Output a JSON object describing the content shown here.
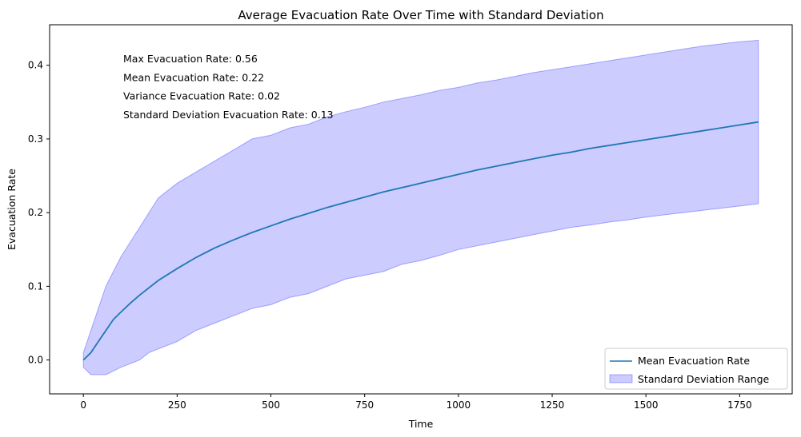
{
  "chart_data": {
    "type": "line",
    "title": "Average Evacuation Rate Over Time with Standard Deviation",
    "xlabel": "Time",
    "ylabel": "Evacuation Rate",
    "xlim": [
      -90,
      1890
    ],
    "ylim": [
      -0.046,
      0.455
    ],
    "xticks": [
      0,
      250,
      500,
      750,
      1000,
      1250,
      1500,
      1750
    ],
    "xtick_labels": [
      "0",
      "250",
      "500",
      "750",
      "1000",
      "1250",
      "1500",
      "1750"
    ],
    "yticks": [
      0.0,
      0.1,
      0.2,
      0.3,
      0.4
    ],
    "ytick_labels": [
      "0.0",
      "0.1",
      "0.2",
      "0.3",
      "0.4"
    ],
    "grid": false,
    "legend_position": "bottom-right",
    "legend": [
      "Mean Evacuation Rate",
      "Standard Deviation Range"
    ],
    "annotations": [
      "Max Evacuation Rate: 0.56",
      "Mean Evacuation Rate: 0.22",
      "Variance Evacuation Rate: 0.02",
      "Standard Deviation Evacuation Rate: 0.13"
    ],
    "series": [
      {
        "name": "Mean Evacuation Rate",
        "type": "line",
        "color": "#1f77b4",
        "x": [
          0,
          20,
          40,
          60,
          80,
          100,
          125,
          150,
          175,
          200,
          250,
          300,
          350,
          400,
          450,
          500,
          550,
          600,
          650,
          700,
          750,
          800,
          850,
          900,
          950,
          1000,
          1050,
          1100,
          1150,
          1200,
          1250,
          1300,
          1350,
          1400,
          1450,
          1500,
          1550,
          1600,
          1650,
          1700,
          1750,
          1800
        ],
        "y": [
          0.0,
          0.01,
          0.025,
          0.04,
          0.055,
          0.065,
          0.077,
          0.088,
          0.098,
          0.108,
          0.124,
          0.139,
          0.152,
          0.163,
          0.173,
          0.182,
          0.191,
          0.199,
          0.207,
          0.214,
          0.221,
          0.228,
          0.234,
          0.24,
          0.246,
          0.252,
          0.258,
          0.263,
          0.268,
          0.273,
          0.278,
          0.282,
          0.287,
          0.291,
          0.295,
          0.299,
          0.303,
          0.307,
          0.311,
          0.315,
          0.319,
          0.323
        ]
      },
      {
        "name": "Standard Deviation Range",
        "type": "area",
        "color": "#0000ff",
        "opacity": 0.2,
        "x": [
          0,
          20,
          40,
          60,
          80,
          100,
          125,
          150,
          175,
          200,
          250,
          300,
          350,
          400,
          450,
          500,
          550,
          600,
          650,
          700,
          750,
          800,
          850,
          900,
          950,
          1000,
          1050,
          1100,
          1150,
          1200,
          1250,
          1300,
          1350,
          1400,
          1450,
          1500,
          1550,
          1600,
          1650,
          1700,
          1750,
          1800
        ],
        "upper": [
          0.01,
          0.04,
          0.07,
          0.1,
          0.12,
          0.14,
          0.16,
          0.18,
          0.2,
          0.22,
          0.24,
          0.255,
          0.27,
          0.285,
          0.3,
          0.305,
          0.315,
          0.32,
          0.33,
          0.337,
          0.343,
          0.35,
          0.355,
          0.36,
          0.366,
          0.37,
          0.376,
          0.38,
          0.385,
          0.39,
          0.394,
          0.398,
          0.402,
          0.406,
          0.41,
          0.414,
          0.418,
          0.422,
          0.426,
          0.429,
          0.432,
          0.434
        ],
        "lower": [
          -0.01,
          -0.02,
          -0.02,
          -0.02,
          -0.015,
          -0.01,
          -0.005,
          0.0,
          0.01,
          0.015,
          0.025,
          0.04,
          0.05,
          0.06,
          0.07,
          0.075,
          0.085,
          0.09,
          0.1,
          0.11,
          0.115,
          0.12,
          0.13,
          0.135,
          0.142,
          0.15,
          0.155,
          0.16,
          0.165,
          0.17,
          0.175,
          0.18,
          0.183,
          0.187,
          0.19,
          0.194,
          0.197,
          0.2,
          0.203,
          0.206,
          0.209,
          0.212
        ]
      }
    ]
  }
}
